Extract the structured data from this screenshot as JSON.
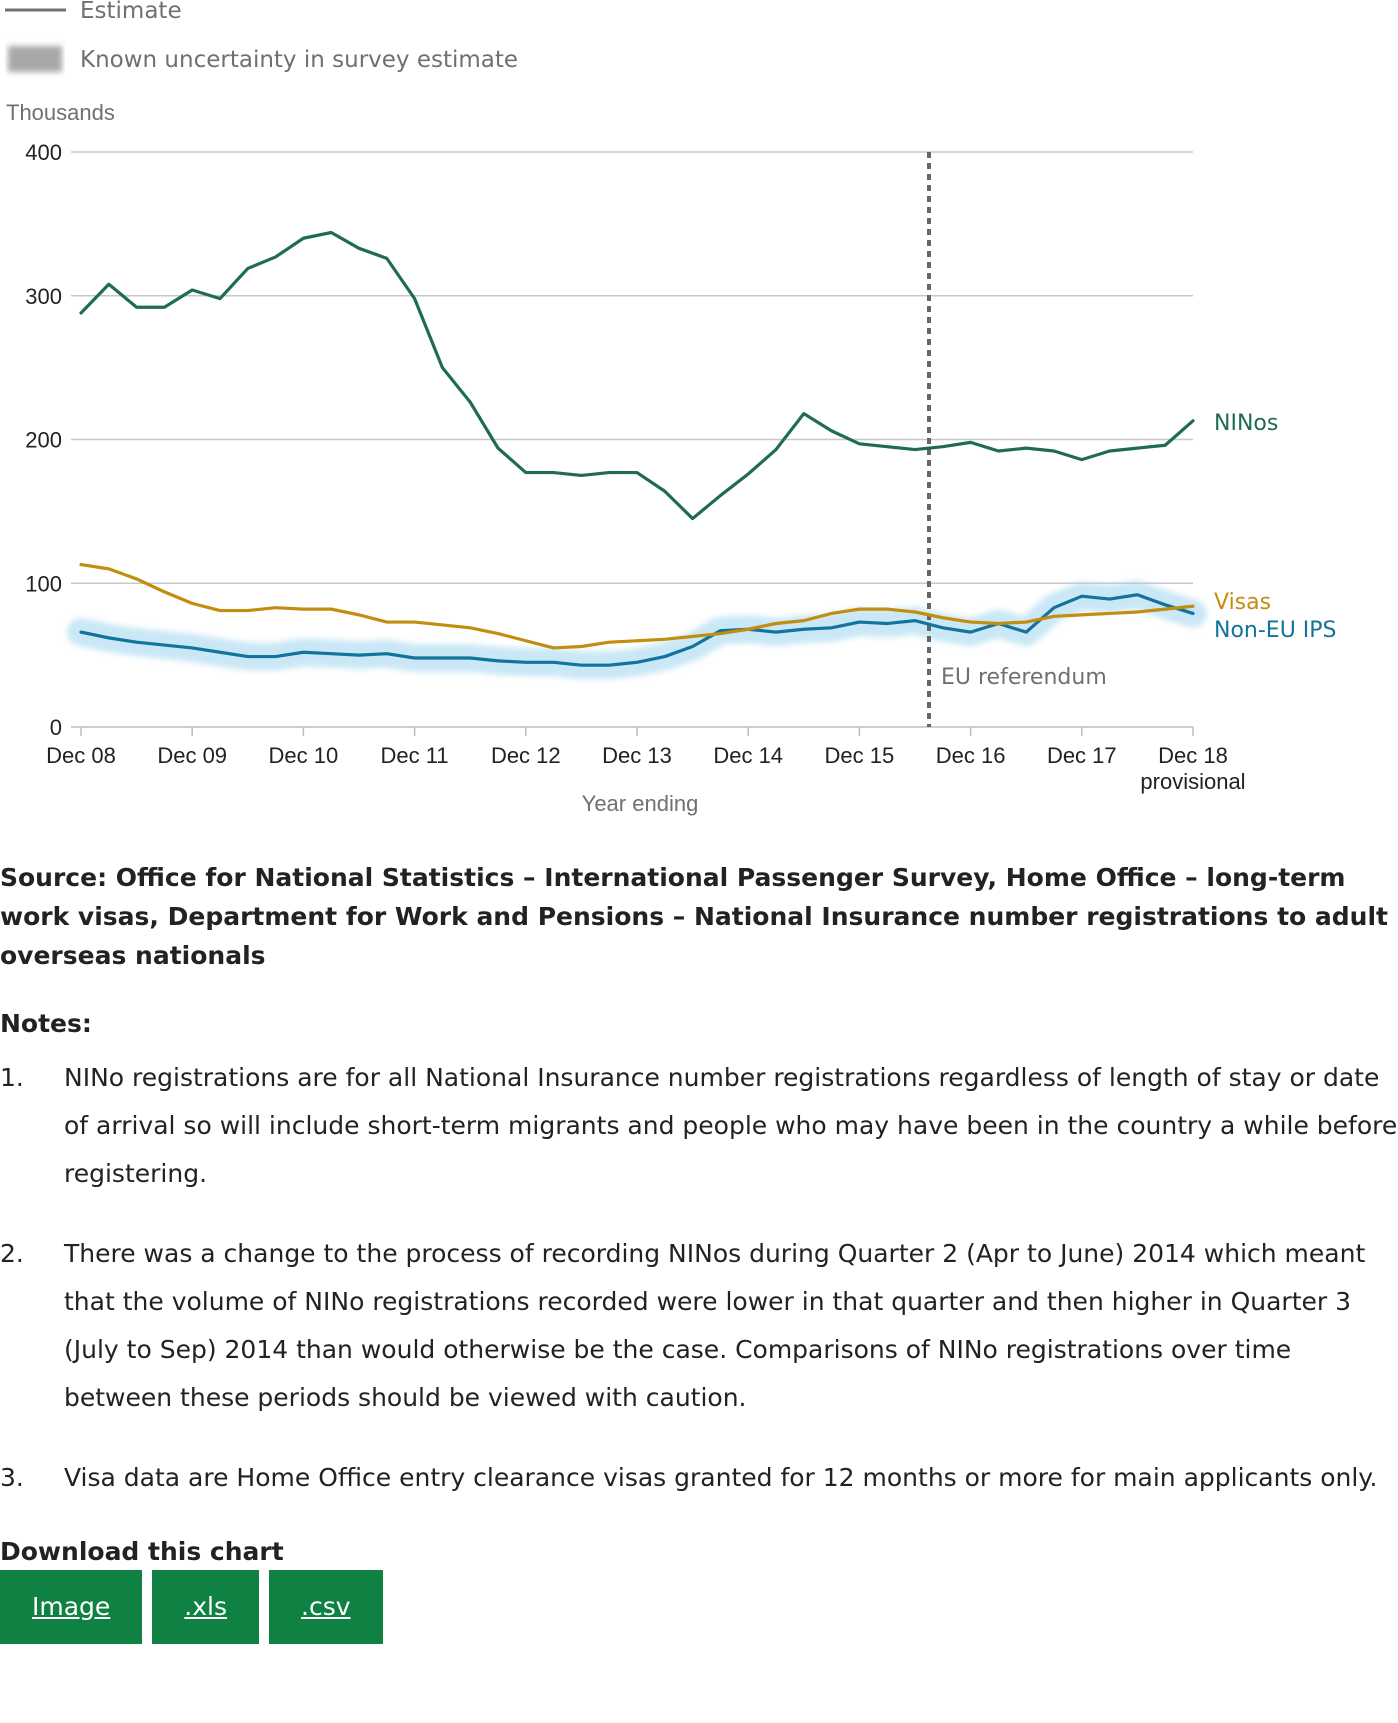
{
  "legend": {
    "estimate_label": "Estimate",
    "uncertainty_label": "Known uncertainty in survey estimate"
  },
  "colors": {
    "ninos": "#206d4e",
    "visas": "#c28d10",
    "non_eu_ips": "#12739c",
    "uncertainty": "#9fd4ef",
    "grid": "#c8c8c8",
    "referendum_line": "#666666",
    "button": "#0f8243"
  },
  "chart_data": {
    "type": "line",
    "ylabel": "Thousands",
    "xlabel": "Year ending",
    "ylim": [
      0,
      400
    ],
    "yticks": [
      0,
      100,
      200,
      300,
      400
    ],
    "xticks": [
      "Dec 08",
      "Dec 09",
      "Dec 10",
      "Dec 11",
      "Dec 12",
      "Dec 13",
      "Dec 14",
      "Dec 15",
      "Dec 16",
      "Dec 17",
      "Dec 18"
    ],
    "xtick_sublabel": "provisional",
    "grid": true,
    "x_step_per_tick": 4,
    "annotation": {
      "label": "EU referendum",
      "x_index": 30
    },
    "series": [
      {
        "name": "NINos",
        "color_key": "ninos",
        "values": [
          288,
          308,
          292,
          292,
          304,
          298,
          319,
          327,
          340,
          344,
          333,
          326,
          298,
          250,
          226,
          194,
          177,
          177,
          175,
          177,
          177,
          164,
          145,
          161,
          176,
          193,
          218,
          206,
          197,
          195,
          193,
          195,
          198,
          192,
          194,
          192,
          186,
          192,
          194,
          196,
          213
        ]
      },
      {
        "name": "Visas",
        "color_key": "visas",
        "values": [
          113,
          110,
          103,
          94,
          86,
          81,
          81,
          83,
          82,
          82,
          78,
          73,
          73,
          71,
          69,
          65,
          60,
          55,
          56,
          59,
          60,
          61,
          63,
          65,
          68,
          72,
          74,
          79,
          82,
          82,
          80,
          76,
          73,
          72,
          73,
          77,
          78,
          79,
          80,
          82,
          84
        ]
      },
      {
        "name": "Non-EU IPS",
        "color_key": "non_eu_ips",
        "uncertainty": true,
        "values": [
          66,
          62,
          59,
          57,
          55,
          52,
          49,
          49,
          52,
          51,
          50,
          51,
          48,
          48,
          48,
          46,
          45,
          45,
          43,
          43,
          45,
          49,
          56,
          67,
          68,
          66,
          68,
          69,
          73,
          72,
          74,
          69,
          66,
          72,
          66,
          83,
          91,
          89,
          92,
          85,
          79
        ]
      }
    ]
  },
  "source": "Source: Office for National Statistics – International Passenger Survey, Home Office – long-term work visas, Department for Work and Pensions – National Insurance number registrations to adult overseas nationals",
  "notes": {
    "heading": "Notes:",
    "items": [
      {
        "num": "1.",
        "text": "NINo registrations are for all National Insurance number registrations regardless of length of stay or date of arrival so will include short-term migrants and people who may have been in the country a while before registering."
      },
      {
        "num": "2.",
        "text": "There was a change to the process of recording NINos during Quarter 2 (Apr to June) 2014 which meant that the volume of NINo registrations recorded were lower in that quarter and then higher in Quarter 3 (July to Sep) 2014 than would otherwise be the case. Comparisons of NINo registrations over time between these periods should be viewed with caution."
      },
      {
        "num": "3.",
        "text": "Visa data are Home Office entry clearance visas granted for 12 months or more for main applicants only."
      }
    ]
  },
  "download": {
    "heading": "Download this chart",
    "buttons": [
      "Image",
      ".xls",
      ".csv"
    ]
  }
}
